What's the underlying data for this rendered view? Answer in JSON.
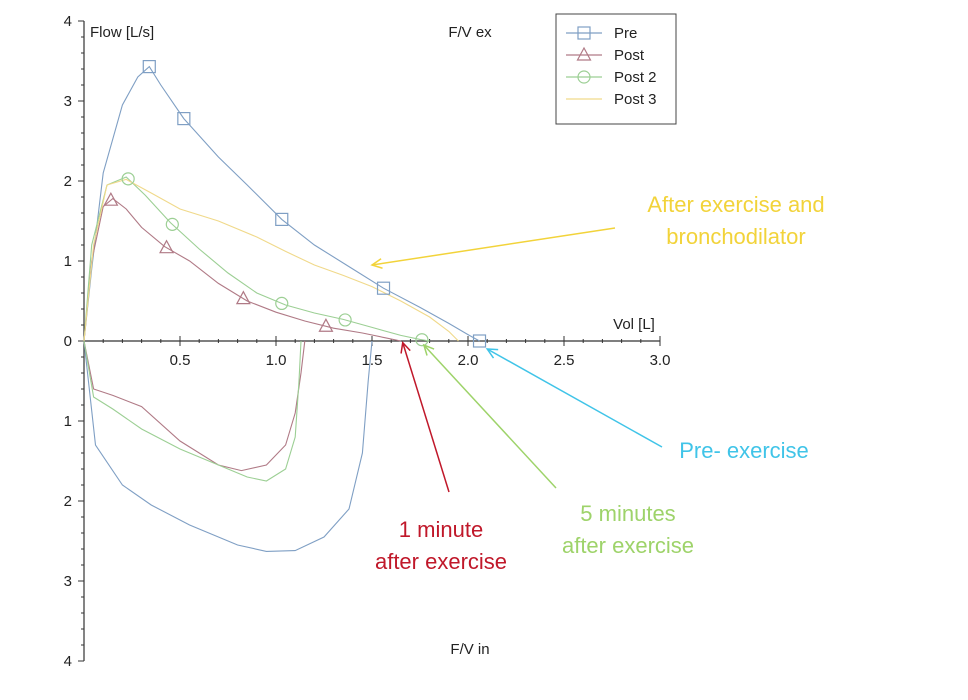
{
  "chart_data": {
    "type": "line",
    "top_title": "F/V ex",
    "bottom_title": "F/V in",
    "ylabel": "Flow [L/s]",
    "xlabel": "Vol [L]",
    "xlim": [
      0,
      3.0
    ],
    "ylim": [
      -4,
      4
    ],
    "x_ticks": [
      0.5,
      1.0,
      1.5,
      2.0,
      2.5,
      3.0
    ],
    "x_tick_labels": [
      "0.5",
      "1.0",
      "1.5",
      "2.0",
      "2.5",
      "3.0"
    ],
    "y_ticks": [
      4,
      3,
      2,
      1,
      0,
      -1,
      -2,
      -3,
      -4
    ],
    "y_tick_labels": [
      "4",
      "3",
      "2",
      "1",
      "0",
      "1",
      "2",
      "3",
      "4"
    ],
    "legend_position": "top-right",
    "series": [
      {
        "name": "Pre",
        "color": "#7f9fc4",
        "marker": "square",
        "expiratory": [
          [
            0,
            0
          ],
          [
            0.04,
            0.9
          ],
          [
            0.1,
            2.1
          ],
          [
            0.2,
            2.95
          ],
          [
            0.28,
            3.3
          ],
          [
            0.34,
            3.43
          ],
          [
            0.4,
            3.2
          ],
          [
            0.52,
            2.78
          ],
          [
            0.7,
            2.3
          ],
          [
            0.85,
            1.95
          ],
          [
            1.03,
            1.52
          ],
          [
            1.2,
            1.2
          ],
          [
            1.4,
            0.9
          ],
          [
            1.56,
            0.66
          ],
          [
            1.75,
            0.42
          ],
          [
            1.9,
            0.22
          ],
          [
            2.0,
            0.08
          ],
          [
            2.06,
            0.0
          ]
        ],
        "inspiratory": [
          [
            0,
            0
          ],
          [
            0.06,
            -1.3
          ],
          [
            0.2,
            -1.8
          ],
          [
            0.35,
            -2.05
          ],
          [
            0.55,
            -2.3
          ],
          [
            0.8,
            -2.55
          ],
          [
            0.95,
            -2.63
          ],
          [
            1.1,
            -2.62
          ],
          [
            1.25,
            -2.45
          ],
          [
            1.38,
            -2.1
          ],
          [
            1.45,
            -1.4
          ],
          [
            1.48,
            -0.5
          ],
          [
            1.5,
            0
          ]
        ],
        "markers_x": [
          0.34,
          0.52,
          1.03,
          1.56,
          2.06
        ]
      },
      {
        "name": "Post",
        "color": "#b07a86",
        "marker": "triangle",
        "expiratory": [
          [
            0,
            0
          ],
          [
            0.04,
            1.0
          ],
          [
            0.1,
            1.68
          ],
          [
            0.15,
            1.78
          ],
          [
            0.22,
            1.65
          ],
          [
            0.3,
            1.42
          ],
          [
            0.42,
            1.18
          ],
          [
            0.55,
            1.0
          ],
          [
            0.7,
            0.72
          ],
          [
            0.85,
            0.5
          ],
          [
            1.0,
            0.36
          ],
          [
            1.15,
            0.25
          ],
          [
            1.3,
            0.16
          ],
          [
            1.45,
            0.1
          ],
          [
            1.57,
            0.04
          ],
          [
            1.65,
            0.0
          ]
        ],
        "inspiratory": [
          [
            0,
            0
          ],
          [
            0.05,
            -0.6
          ],
          [
            0.15,
            -0.68
          ],
          [
            0.3,
            -0.82
          ],
          [
            0.5,
            -1.25
          ],
          [
            0.7,
            -1.55
          ],
          [
            0.82,
            -1.62
          ],
          [
            0.95,
            -1.55
          ],
          [
            1.05,
            -1.3
          ],
          [
            1.1,
            -0.9
          ],
          [
            1.13,
            -0.4
          ],
          [
            1.15,
            0
          ]
        ],
        "markers_x": [
          0.14,
          0.43,
          0.83,
          1.26
        ]
      },
      {
        "name": "Post 2",
        "color": "#9ccf94",
        "marker": "circle",
        "expiratory": [
          [
            0,
            0
          ],
          [
            0.04,
            1.2
          ],
          [
            0.12,
            1.95
          ],
          [
            0.22,
            2.05
          ],
          [
            0.32,
            1.82
          ],
          [
            0.45,
            1.48
          ],
          [
            0.6,
            1.15
          ],
          [
            0.75,
            0.85
          ],
          [
            0.9,
            0.6
          ],
          [
            1.05,
            0.45
          ],
          [
            1.2,
            0.35
          ],
          [
            1.35,
            0.27
          ],
          [
            1.5,
            0.17
          ],
          [
            1.65,
            0.07
          ],
          [
            1.75,
            0.02
          ],
          [
            1.8,
            0.0
          ]
        ],
        "inspiratory": [
          [
            0,
            0
          ],
          [
            0.05,
            -0.7
          ],
          [
            0.15,
            -0.85
          ],
          [
            0.3,
            -1.1
          ],
          [
            0.5,
            -1.35
          ],
          [
            0.7,
            -1.55
          ],
          [
            0.85,
            -1.7
          ],
          [
            0.95,
            -1.75
          ],
          [
            1.05,
            -1.6
          ],
          [
            1.1,
            -1.2
          ],
          [
            1.12,
            -0.5
          ],
          [
            1.13,
            0
          ]
        ],
        "markers_x": [
          0.23,
          0.46,
          1.03,
          1.36,
          1.76
        ]
      },
      {
        "name": "Post 3",
        "color": "#f0d98a",
        "marker": "none",
        "expiratory": [
          [
            0,
            0
          ],
          [
            0.05,
            1.2
          ],
          [
            0.12,
            1.95
          ],
          [
            0.22,
            2.02
          ],
          [
            0.35,
            1.85
          ],
          [
            0.5,
            1.65
          ],
          [
            0.7,
            1.5
          ],
          [
            0.9,
            1.3
          ],
          [
            1.05,
            1.12
          ],
          [
            1.2,
            0.95
          ],
          [
            1.35,
            0.82
          ],
          [
            1.5,
            0.68
          ],
          [
            1.65,
            0.5
          ],
          [
            1.8,
            0.3
          ],
          [
            1.9,
            0.12
          ],
          [
            1.95,
            0.0
          ]
        ],
        "inspiratory": [],
        "markers_x": []
      }
    ],
    "annotations": [
      {
        "id": "bronch",
        "lines": [
          "After exercise and",
          "bronchodilator"
        ],
        "color": "#f2d33a",
        "arrow_to": [
          1.5,
          0.95
        ]
      },
      {
        "id": "pre",
        "lines": [
          "Pre- exercise"
        ],
        "color": "#40c4e8",
        "arrow_to": [
          2.1,
          -0.1
        ]
      },
      {
        "id": "five",
        "lines": [
          "5 minutes",
          "after exercise"
        ],
        "color": "#9ed36a",
        "arrow_to": [
          1.77,
          -0.05
        ]
      },
      {
        "id": "one",
        "lines": [
          "1 minute",
          "after exercise"
        ],
        "color": "#c0182a",
        "arrow_to": [
          1.66,
          -0.02
        ]
      }
    ]
  }
}
